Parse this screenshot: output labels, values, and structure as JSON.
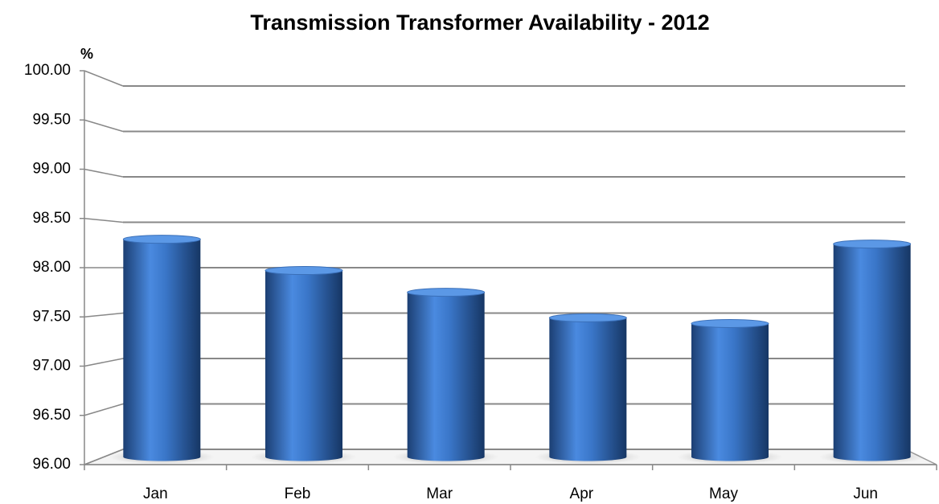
{
  "chart_data": {
    "type": "bar",
    "title": "Transmission Transformer Availability - 2012",
    "y_label": "%",
    "categories": [
      "Jan",
      "Feb",
      "Mar",
      "Apr",
      "May",
      "Jun"
    ],
    "values": [
      98.3,
      97.97,
      97.74,
      97.47,
      97.41,
      98.25
    ],
    "color": "#3f78c8",
    "ylim": [
      96,
      100
    ],
    "yticks": [
      {
        "value": 96,
        "label": "96.00"
      },
      {
        "value": 96.5,
        "label": "96.50"
      },
      {
        "value": 97,
        "label": "97.00"
      },
      {
        "value": 97.5,
        "label": "97.50"
      },
      {
        "value": 98,
        "label": "98.00"
      },
      {
        "value": 98.5,
        "label": "98.50"
      },
      {
        "value": 99,
        "label": "99.00"
      },
      {
        "value": 99.5,
        "label": "99.50"
      },
      {
        "value": 100,
        "label": "100.00"
      }
    ],
    "grid": true
  }
}
